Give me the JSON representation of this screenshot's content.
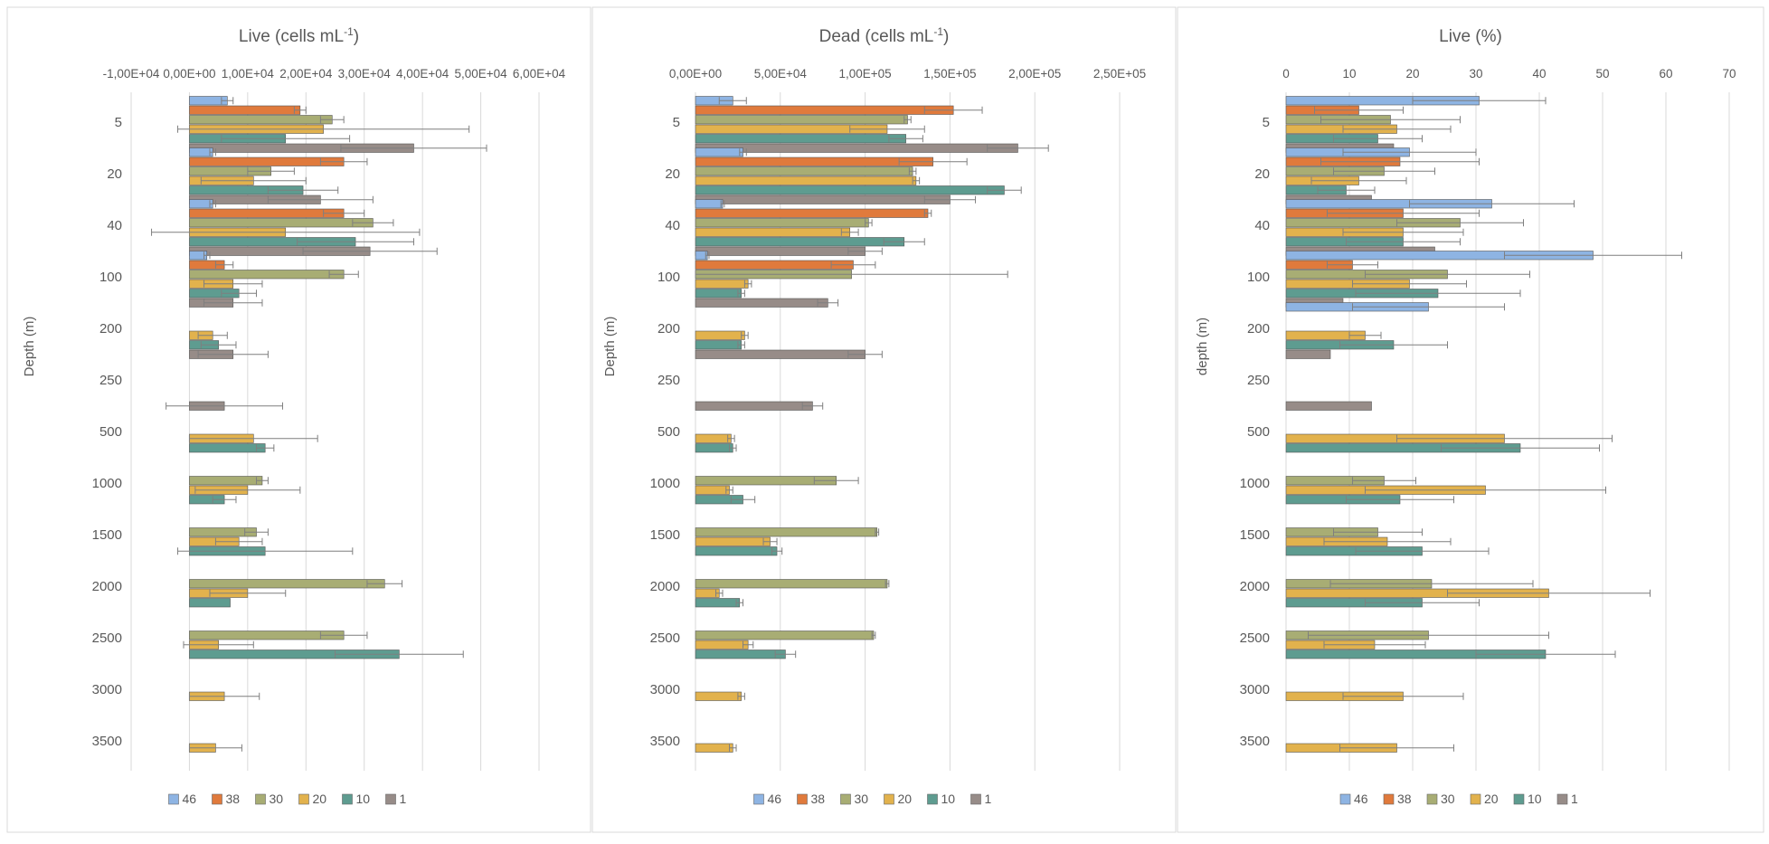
{
  "colors": {
    "46": "#8eb4e3",
    "38": "#e07a3c",
    "30": "#a8ad74",
    "20": "#e2b24d",
    "10": "#5e9c90",
    "1": "#978c88",
    "axis_text": "#595959",
    "grid": "#d9d9d9",
    "border": "#d9d9d9",
    "errbar": "#7f7f7f"
  },
  "chart_data": [
    {
      "type": "bar",
      "orientation": "horizontal",
      "title": "Live (cells mL",
      "title_sup": "-1",
      "title_end": ")",
      "ylabel": "Depth (m)",
      "xlim": [
        -10000,
        60000
      ],
      "x_ticks": [
        -10000,
        0,
        10000,
        20000,
        30000,
        40000,
        50000,
        60000
      ],
      "x_tick_labels": [
        "-1,00E+04",
        "0,00E+00",
        "1,00E+04",
        "2,00E+04",
        "3,00E+04",
        "4,00E+04",
        "5,00E+04",
        "6,00E+04"
      ],
      "categories": [
        "5",
        "20",
        "40",
        "100",
        "200",
        "250",
        "500",
        "1000",
        "1500",
        "2000",
        "2500",
        "3000",
        "3500"
      ],
      "legend": [
        "46",
        "38",
        "30",
        "20",
        "10",
        "1"
      ],
      "series": [
        {
          "name": "46",
          "values": [
            6500,
            4000,
            4000,
            3000,
            0,
            0,
            0,
            0,
            0,
            0,
            0,
            0,
            0
          ],
          "errors": [
            1000,
            500,
            500,
            500,
            0,
            0,
            0,
            0,
            0,
            0,
            0,
            0,
            0
          ]
        },
        {
          "name": "38",
          "values": [
            19000,
            26500,
            26500,
            6000,
            0,
            0,
            0,
            0,
            0,
            0,
            0,
            0,
            0
          ],
          "errors": [
            1000,
            4000,
            3500,
            1500,
            0,
            0,
            0,
            0,
            0,
            0,
            0,
            0,
            0
          ]
        },
        {
          "name": "30",
          "values": [
            24500,
            14000,
            31500,
            26500,
            0,
            0,
            0,
            12500,
            11500,
            33500,
            26500,
            0,
            0
          ],
          "errors": [
            2000,
            4000,
            3500,
            2500,
            0,
            0,
            0,
            1000,
            2000,
            3000,
            4000,
            0,
            0
          ]
        },
        {
          "name": "20",
          "values": [
            23000,
            11000,
            16500,
            7500,
            4000,
            0,
            11000,
            10000,
            8500,
            10000,
            5000,
            6000,
            4500
          ],
          "errors": [
            25000,
            9000,
            23000,
            5000,
            2500,
            0,
            11000,
            9000,
            4000,
            6500,
            6000,
            6000,
            4500
          ]
        },
        {
          "name": "10",
          "values": [
            16500,
            19500,
            28500,
            8500,
            5000,
            0,
            13000,
            6000,
            13000,
            7000,
            36000,
            0,
            0
          ],
          "errors": [
            11000,
            6000,
            10000,
            3000,
            3000,
            0,
            1500,
            2000,
            15000,
            0,
            11000,
            0,
            0
          ]
        },
        {
          "name": "1",
          "values": [
            38500,
            22500,
            31000,
            7500,
            7500,
            6000,
            0,
            0,
            0,
            0,
            0,
            0,
            0
          ],
          "errors": [
            12500,
            9000,
            11500,
            5000,
            6000,
            10000,
            0,
            0,
            0,
            0,
            0,
            0,
            0
          ]
        }
      ]
    },
    {
      "type": "bar",
      "orientation": "horizontal",
      "title": "Dead (cells mL",
      "title_sup": "-1",
      "title_end": ")",
      "ylabel": "Depth (m)",
      "xlim": [
        0,
        250000
      ],
      "x_ticks": [
        0,
        50000,
        100000,
        150000,
        200000,
        250000
      ],
      "x_tick_labels": [
        "0,00E+00",
        "5,00E+04",
        "1,00E+05",
        "1,50E+05",
        "2,00E+05",
        "2,50E+05"
      ],
      "categories": [
        "5",
        "20",
        "40",
        "100",
        "200",
        "250",
        "500",
        "1000",
        "1500",
        "2000",
        "2500",
        "3000",
        "3500"
      ],
      "legend": [
        "46",
        "38",
        "30",
        "20",
        "10",
        "1"
      ],
      "series": [
        {
          "name": "46",
          "values": [
            22000,
            28000,
            16000,
            7000,
            0,
            0,
            0,
            0,
            0,
            0,
            0,
            0,
            0
          ],
          "errors": [
            8000,
            2000,
            1000,
            1000,
            0,
            0,
            0,
            0,
            0,
            0,
            0,
            0,
            0
          ]
        },
        {
          "name": "38",
          "values": [
            152000,
            140000,
            137000,
            93000,
            0,
            0,
            0,
            0,
            0,
            0,
            0,
            0,
            0
          ],
          "errors": [
            17000,
            20000,
            2000,
            13000,
            0,
            0,
            0,
            0,
            0,
            0,
            0,
            0,
            0
          ]
        },
        {
          "name": "30",
          "values": [
            125000,
            128000,
            102000,
            92000,
            0,
            0,
            0,
            83000,
            107000,
            113000,
            105000,
            0,
            0
          ],
          "errors": [
            2000,
            2000,
            2000,
            92000,
            0,
            0,
            0,
            13000,
            1000,
            1000,
            1000,
            0,
            0
          ]
        },
        {
          "name": "20",
          "values": [
            113000,
            130000,
            91000,
            31000,
            29000,
            0,
            21000,
            20000,
            44000,
            14000,
            31000,
            27000,
            22000
          ],
          "errors": [
            22000,
            2000,
            5000,
            2000,
            2000,
            0,
            2000,
            2000,
            4000,
            2000,
            3000,
            2000,
            2000
          ]
        },
        {
          "name": "10",
          "values": [
            124000,
            182000,
            123000,
            27000,
            27000,
            0,
            22000,
            28000,
            48000,
            26000,
            53000,
            0,
            0
          ],
          "errors": [
            10000,
            10000,
            12000,
            2000,
            2000,
            0,
            2000,
            7000,
            3000,
            2000,
            6000,
            0,
            0
          ]
        },
        {
          "name": "1",
          "values": [
            190000,
            150000,
            100000,
            78000,
            100000,
            69000,
            0,
            0,
            0,
            0,
            0,
            0,
            0
          ],
          "errors": [
            18000,
            15000,
            10000,
            6000,
            10000,
            6000,
            0,
            0,
            0,
            0,
            0,
            0,
            0
          ]
        }
      ]
    },
    {
      "type": "bar",
      "orientation": "horizontal",
      "title": "Live (%)",
      "title_sup": "",
      "title_end": "",
      "ylabel": "depth (m)",
      "xlim": [
        0,
        70
      ],
      "x_ticks": [
        0,
        10,
        20,
        30,
        40,
        50,
        60,
        70
      ],
      "x_tick_labels": [
        "0",
        "10",
        "20",
        "30",
        "40",
        "50",
        "60",
        "70"
      ],
      "categories": [
        "5",
        "20",
        "40",
        "100",
        "200",
        "250",
        "500",
        "1000",
        "1500",
        "2000",
        "2500",
        "3000",
        "3500"
      ],
      "legend": [
        "46",
        "38",
        "30",
        "20",
        "10",
        "1"
      ],
      "series": [
        {
          "name": "46",
          "values": [
            30.5,
            19.5,
            32.5,
            48.5,
            22.5,
            0,
            0,
            0,
            0,
            0,
            0,
            0,
            0
          ],
          "errors": [
            10.5,
            10.5,
            13,
            14,
            12,
            0,
            0,
            0,
            0,
            0,
            0,
            0,
            0
          ]
        },
        {
          "name": "38",
          "values": [
            11.5,
            18,
            18.5,
            10.5,
            0,
            0,
            0,
            0,
            0,
            0,
            0,
            0,
            0
          ],
          "errors": [
            7,
            12.5,
            12,
            4,
            0,
            0,
            0,
            0,
            0,
            0,
            0,
            0,
            0
          ]
        },
        {
          "name": "30",
          "values": [
            16.5,
            15.5,
            27.5,
            25.5,
            0,
            0,
            0,
            15.5,
            14.5,
            23,
            22.5,
            0,
            0
          ],
          "errors": [
            11,
            8,
            10,
            13,
            0,
            0,
            0,
            5,
            7,
            16,
            19,
            0,
            0
          ]
        },
        {
          "name": "20",
          "values": [
            17.5,
            11.5,
            18.5,
            19.5,
            12.5,
            0,
            34.5,
            31.5,
            16,
            41.5,
            14,
            18.5,
            17.5
          ],
          "errors": [
            8.5,
            7.5,
            9.5,
            9,
            2.5,
            0,
            17,
            19,
            10,
            16,
            8,
            9.5,
            9
          ]
        },
        {
          "name": "10",
          "values": [
            14.5,
            9.5,
            18.5,
            24,
            17,
            0,
            37,
            18,
            21.5,
            21.5,
            41,
            0,
            0
          ],
          "errors": [
            7,
            4.5,
            9,
            13,
            8.5,
            0,
            12.5,
            8.5,
            10.5,
            9,
            11,
            0,
            0
          ]
        },
        {
          "name": "1",
          "values": [
            17,
            13.5,
            23.5,
            9,
            7,
            13.5,
            0,
            0,
            0,
            0,
            0,
            0,
            0
          ],
          "errors": [
            0,
            0,
            0,
            0,
            0,
            0,
            0,
            0,
            0,
            0,
            0,
            0,
            0
          ]
        }
      ]
    }
  ]
}
